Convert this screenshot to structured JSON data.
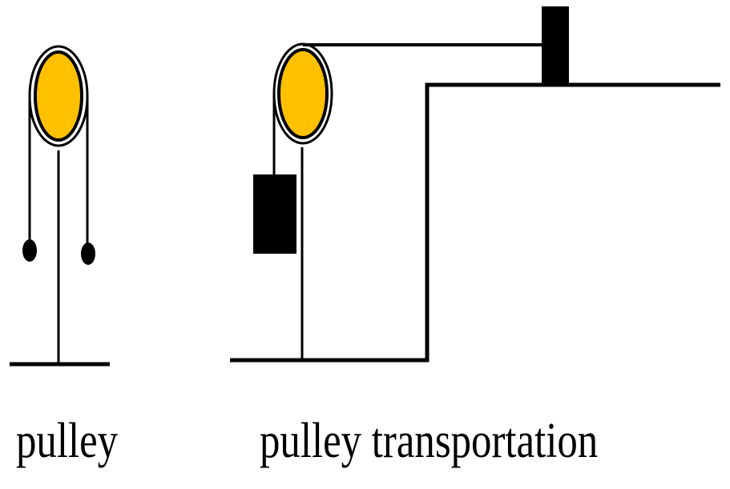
{
  "captions": {
    "left": "pulley",
    "right": "pulley transportation"
  },
  "colors": {
    "wheel_fill": "#FFC000",
    "stroke": "#000000",
    "background": "#FFFFFF"
  }
}
